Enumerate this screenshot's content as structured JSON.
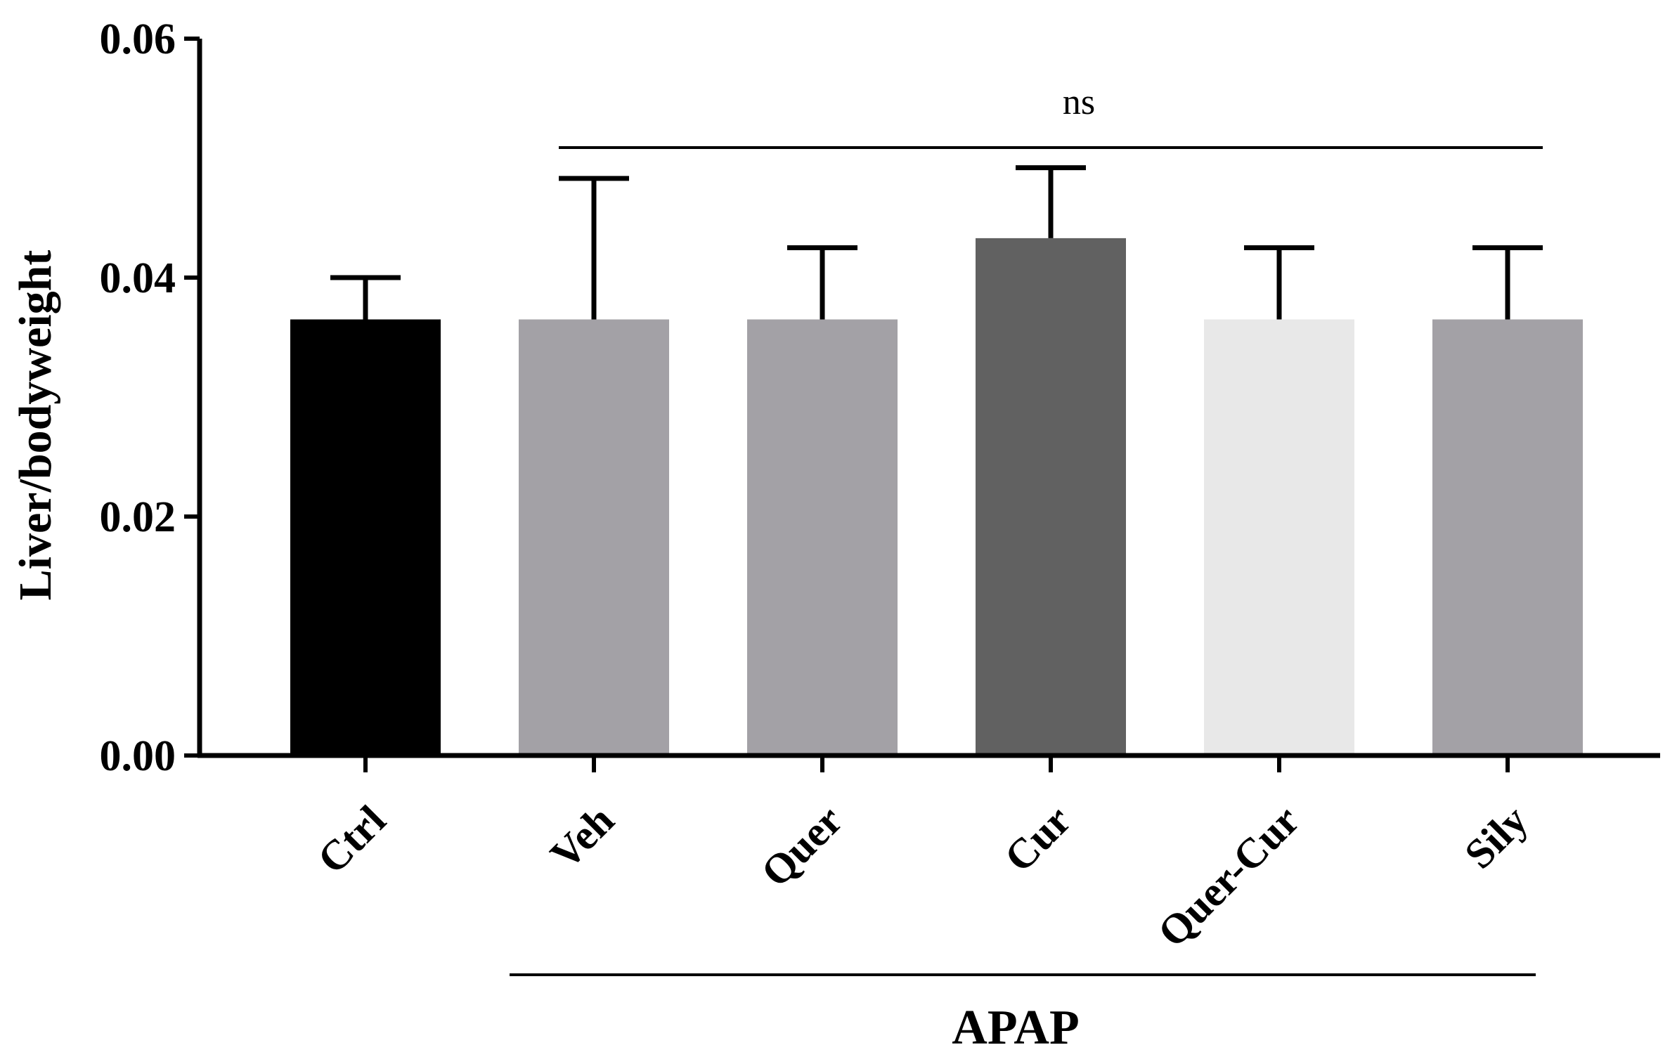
{
  "chart_data": {
    "type": "bar",
    "title": "",
    "xlabel": "",
    "ylabel": "Liver/bodyweight",
    "ylim": [
      0,
      0.06
    ],
    "yticks": [
      "0.00",
      "0.02",
      "0.04",
      "0.06"
    ],
    "ytick_values": [
      0,
      0.02,
      0.04,
      0.06
    ],
    "categories": [
      "Ctrl",
      "Veh",
      "Quer",
      "Cur",
      "Quer-Cur",
      "Sily"
    ],
    "values": [
      0.0365,
      0.0365,
      0.0365,
      0.0433,
      0.0365,
      0.0365
    ],
    "errors": [
      0.0035,
      0.0118,
      0.006,
      0.0059,
      0.006,
      0.006
    ],
    "colors": [
      "#000000",
      "#a3a1a6",
      "#a3a1a6",
      "#616161",
      "#e8e8e8",
      "#a3a1a6"
    ],
    "grid": false,
    "legend": false,
    "group_bracket": {
      "label": "APAP",
      "from": "Veh",
      "to": "Sily"
    },
    "significance": {
      "label": "ns",
      "from": "Veh",
      "to": "Sily"
    }
  }
}
